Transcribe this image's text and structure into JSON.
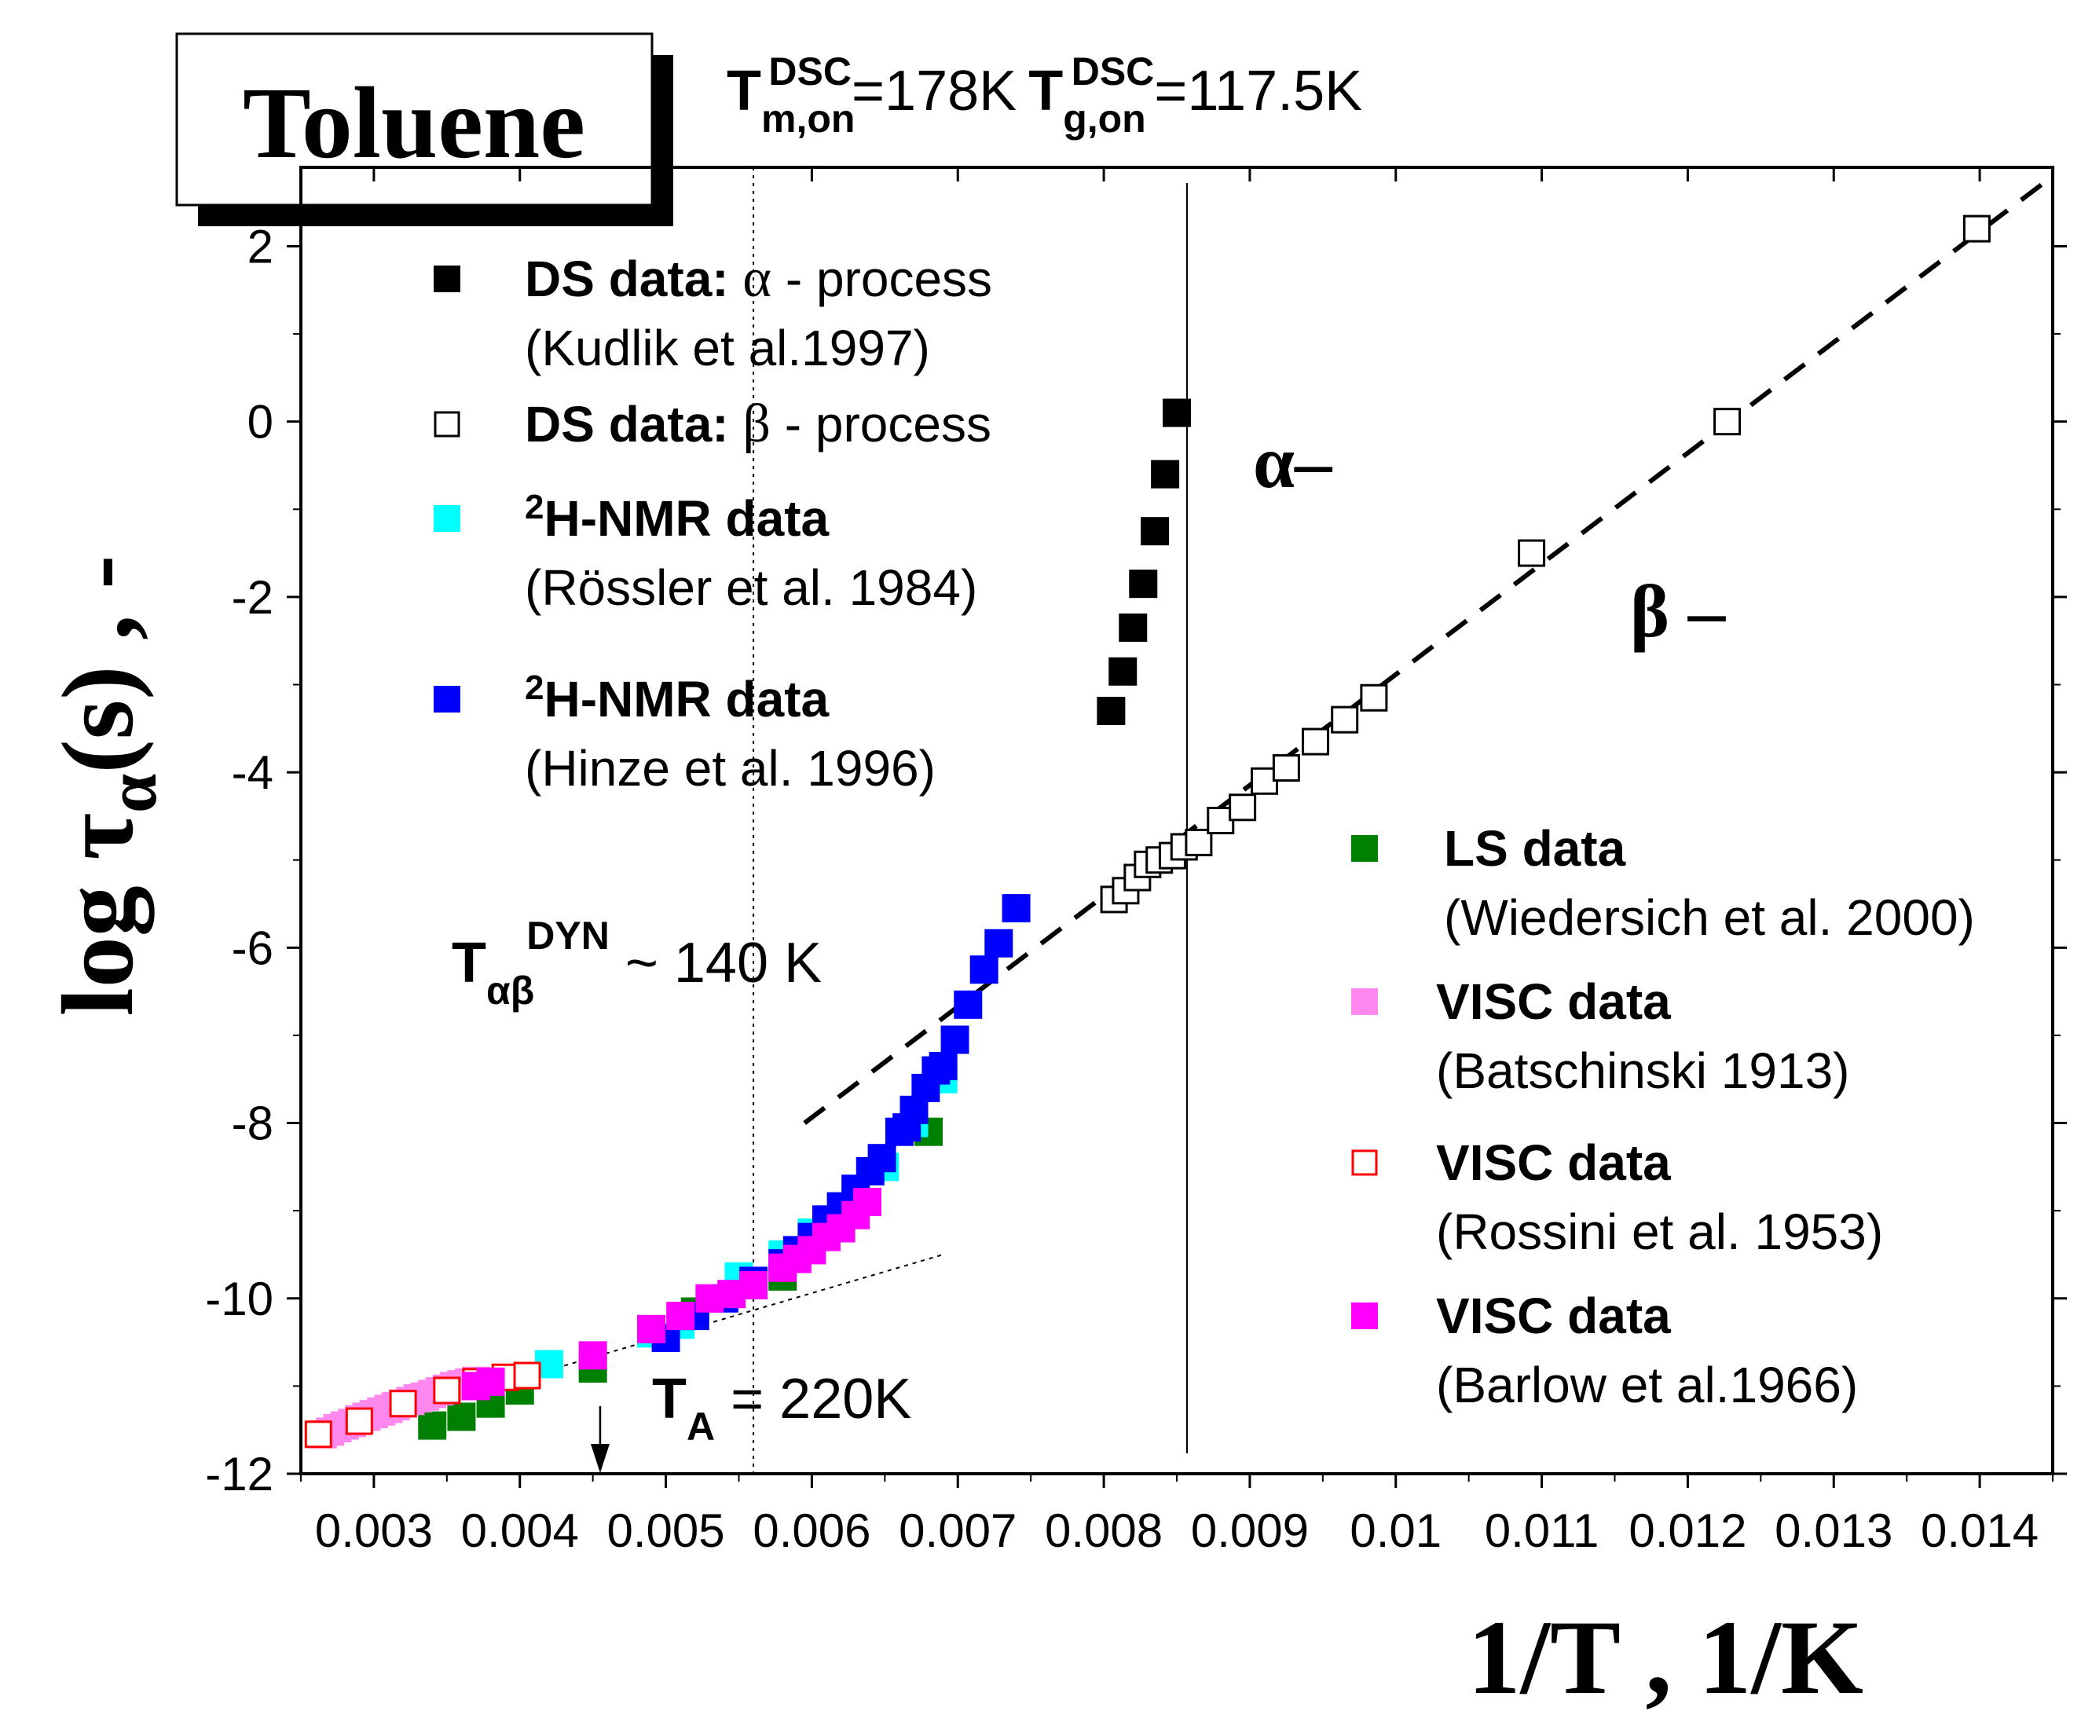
{
  "chart_data": {
    "type": "scatter",
    "title_box": "Toluene",
    "header": {
      "tm_main": "T",
      "tm_sub": "m,on",
      "tm_sup": "DSC",
      "tm_value": "=178K",
      "tg_main": "T",
      "tg_sub": "g,on",
      "tg_sup": "DSC",
      "tg_value": "=117.5K"
    },
    "xlabel": "1/T , 1/K",
    "ylabel": {
      "prefix": "log τ",
      "sub": "α",
      "suffix": "(s) , -"
    },
    "xlim": [
      0.0025,
      0.0145
    ],
    "ylim": [
      -12,
      2.9
    ],
    "xticks": [
      0.003,
      0.004,
      0.005,
      0.006,
      0.007,
      0.008,
      0.009,
      0.01,
      0.011,
      0.012,
      0.013,
      0.014
    ],
    "xtick_labels": [
      "0.003",
      "0.004",
      "0.005",
      "0.006",
      "0.007",
      "0.008",
      "0.009",
      "0.01",
      "0.011",
      "0.012",
      "0.013",
      "0.014"
    ],
    "yticks": [
      -12,
      -10,
      -8,
      -6,
      -4,
      -2,
      0,
      2
    ],
    "ytick_labels": [
      "-12",
      "-10",
      "-8",
      "-6",
      "-4",
      "-2",
      "0",
      "2"
    ],
    "annotations": {
      "alpha_label": "α–",
      "beta_label": "β –",
      "tab": {
        "main": "T",
        "sub": "αβ",
        "sup": "DYN",
        "rest": " ~ 140 K"
      },
      "ta": {
        "main": "T",
        "sub": "A",
        "rest": " = 220K"
      }
    },
    "reference_lines": {
      "vline_dotted_x": 0.0056,
      "vline_solid_x": 0.00857,
      "dashed_beta_line": [
        [
          0.00595,
          -8.0
        ],
        [
          0.0145,
          2.8
        ]
      ],
      "dotted_fit_line": [
        [
          0.0026,
          -11.6
        ],
        [
          0.0069,
          -9.5
        ]
      ],
      "arrow_x": 0.00455
    },
    "legend_left": [
      {
        "label": "DS data: ",
        "greek": "α",
        "rest": " - process",
        "sub": "(Kudlik et al.1997)",
        "color": "#000000",
        "filled": true
      },
      {
        "label": "DS data: ",
        "greek": "β",
        "rest": " - process",
        "sub": "",
        "color": "#000000",
        "filled": false
      },
      {
        "sup": "2",
        "label": "H-NMR data",
        "sub": "(Rössler et al. 1984)",
        "color": "#00ffff",
        "filled": true
      },
      {
        "sup": "2",
        "label": "H-NMR data",
        "sub": "(Hinze et al. 1996)",
        "color": "#0000ff",
        "filled": true
      }
    ],
    "legend_right": [
      {
        "label": "LS data",
        "sub": "(Wiedersich et al. 2000)",
        "color": "#008000",
        "filled": true
      },
      {
        "label": "VISC data",
        "sub": "(Batschinski 1913)",
        "color": "#ff88ee",
        "filled": true
      },
      {
        "label": "VISC data",
        "sub": "(Rossini et al. 1953)",
        "color": "#ff0000",
        "filled": false
      },
      {
        "label": "VISC data",
        "sub": "(Barlow et al.1966)",
        "color": "#ff00ff",
        "filled": true
      }
    ],
    "series": [
      {
        "name": "DS alpha (Kudlik 1997)",
        "color": "#000000",
        "filled": true,
        "points": [
          [
            0.00805,
            -3.3
          ],
          [
            0.00813,
            -2.85
          ],
          [
            0.0082,
            -2.35
          ],
          [
            0.00827,
            -1.85
          ],
          [
            0.00835,
            -1.25
          ],
          [
            0.00842,
            -0.6
          ],
          [
            0.0085,
            0.1
          ]
        ]
      },
      {
        "name": "DS beta",
        "color": "#000000",
        "filled": false,
        "points": [
          [
            0.00807,
            -5.45
          ],
          [
            0.00815,
            -5.35
          ],
          [
            0.00823,
            -5.2
          ],
          [
            0.0083,
            -5.05
          ],
          [
            0.00838,
            -5.0
          ],
          [
            0.00847,
            -4.95
          ],
          [
            0.00855,
            -4.85
          ],
          [
            0.00865,
            -4.8
          ],
          [
            0.0088,
            -4.55
          ],
          [
            0.00895,
            -4.4
          ],
          [
            0.0091,
            -4.1
          ],
          [
            0.00925,
            -3.95
          ],
          [
            0.00945,
            -3.65
          ],
          [
            0.00965,
            -3.4
          ],
          [
            0.00985,
            -3.15
          ],
          [
            0.01093,
            -1.5
          ],
          [
            0.01227,
            0.0
          ],
          [
            0.01398,
            2.2
          ]
        ]
      },
      {
        "name": "LS (Wiedersich 2000)",
        "color": "#008000",
        "filled": true,
        "points": [
          [
            0.0034,
            -11.45
          ],
          [
            0.0036,
            -11.35
          ],
          [
            0.0038,
            -11.2
          ],
          [
            0.004,
            -11.05
          ],
          [
            0.0045,
            -10.8
          ],
          [
            0.0052,
            -10.15
          ],
          [
            0.0058,
            -9.75
          ],
          [
            0.0062,
            -9.2
          ],
          [
            0.0068,
            -8.1
          ]
        ]
      },
      {
        "name": "2H-NMR (Rössler 1984)",
        "color": "#00ffff",
        "filled": true,
        "points": [
          [
            0.0042,
            -10.75
          ],
          [
            0.0049,
            -10.4
          ],
          [
            0.0051,
            -10.3
          ],
          [
            0.0055,
            -9.75
          ],
          [
            0.0058,
            -9.5
          ],
          [
            0.006,
            -9.25
          ],
          [
            0.0063,
            -8.9
          ],
          [
            0.0065,
            -8.5
          ],
          [
            0.0067,
            -8.0
          ],
          [
            0.0069,
            -7.5
          ]
        ]
      },
      {
        "name": "2H-NMR (Hinze 1996)",
        "color": "#0000ff",
        "filled": true,
        "points": [
          [
            0.005,
            -10.45
          ],
          [
            0.0052,
            -10.2
          ],
          [
            0.0054,
            -10.0
          ],
          [
            0.0056,
            -9.8
          ],
          [
            0.0058,
            -9.6
          ],
          [
            0.0059,
            -9.45
          ],
          [
            0.006,
            -9.3
          ],
          [
            0.0061,
            -9.1
          ],
          [
            0.0062,
            -8.95
          ],
          [
            0.0063,
            -8.75
          ],
          [
            0.0064,
            -8.55
          ],
          [
            0.00648,
            -8.4
          ],
          [
            0.0066,
            -8.1
          ],
          [
            0.00665,
            -8.05
          ],
          [
            0.0067,
            -7.85
          ],
          [
            0.00678,
            -7.6
          ],
          [
            0.00685,
            -7.4
          ],
          [
            0.0069,
            -7.35
          ],
          [
            0.00698,
            -7.05
          ],
          [
            0.00707,
            -6.65
          ],
          [
            0.00718,
            -6.25
          ],
          [
            0.00728,
            -5.95
          ],
          [
            0.0074,
            -5.55
          ]
        ]
      },
      {
        "name": "VISC (Batschinski 1913)",
        "color": "#ff88ee",
        "filled": true,
        "points": [
          [
            0.00265,
            -11.55
          ],
          [
            0.0027,
            -11.52
          ],
          [
            0.00275,
            -11.48
          ],
          [
            0.0028,
            -11.45
          ],
          [
            0.00285,
            -11.42
          ],
          [
            0.0029,
            -11.38
          ],
          [
            0.00295,
            -11.35
          ],
          [
            0.003,
            -11.32
          ],
          [
            0.00305,
            -11.29
          ],
          [
            0.0031,
            -11.26
          ],
          [
            0.00315,
            -11.23
          ],
          [
            0.0032,
            -11.2
          ],
          [
            0.00325,
            -11.17
          ],
          [
            0.0033,
            -11.14
          ],
          [
            0.00335,
            -11.12
          ],
          [
            0.0034,
            -11.09
          ],
          [
            0.00345,
            -11.06
          ],
          [
            0.0035,
            -11.03
          ],
          [
            0.00355,
            -11.0
          ],
          [
            0.0036,
            -10.98
          ],
          [
            0.00365,
            -10.96
          ],
          [
            0.0037,
            -10.94
          ]
        ]
      },
      {
        "name": "VISC (Rossini 1953)",
        "color": "#ff0000",
        "filled": false,
        "points": [
          [
            0.00262,
            -11.55
          ],
          [
            0.0029,
            -11.4
          ],
          [
            0.0032,
            -11.2
          ],
          [
            0.0035,
            -11.05
          ],
          [
            0.0037,
            -10.95
          ],
          [
            0.0039,
            -10.9
          ],
          [
            0.00405,
            -10.88
          ]
        ]
      },
      {
        "name": "VISC (Barlow 1966)",
        "color": "#ff00ff",
        "filled": true,
        "points": [
          [
            0.0037,
            -11.0
          ],
          [
            0.0038,
            -10.95
          ],
          [
            0.0045,
            -10.65
          ],
          [
            0.0049,
            -10.35
          ],
          [
            0.0051,
            -10.2
          ],
          [
            0.0053,
            -10.0
          ],
          [
            0.00545,
            -9.95
          ],
          [
            0.0056,
            -9.85
          ],
          [
            0.0058,
            -9.65
          ],
          [
            0.0059,
            -9.55
          ],
          [
            0.006,
            -9.45
          ],
          [
            0.0061,
            -9.3
          ],
          [
            0.0062,
            -9.2
          ],
          [
            0.0063,
            -9.05
          ],
          [
            0.00638,
            -8.9
          ]
        ]
      }
    ]
  }
}
